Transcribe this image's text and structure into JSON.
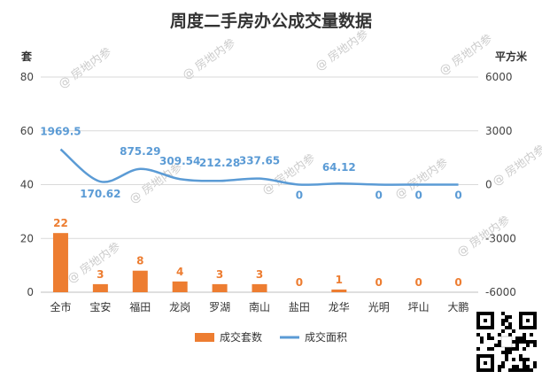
{
  "chart_data": {
    "type": "bar",
    "title": "周度二手房办公成交量数据",
    "categories": [
      "全市",
      "宝安",
      "福田",
      "龙岗",
      "罗湖",
      "南山",
      "盐田",
      "龙华",
      "光明",
      "坪山",
      "大鹏"
    ],
    "series": [
      {
        "name": "成交套数",
        "type": "bar",
        "axis": "left",
        "color": "#ed7d31",
        "values": [
          22,
          3,
          8,
          4,
          3,
          3,
          0,
          1,
          0,
          0,
          0
        ],
        "labels": [
          "22",
          "3",
          "8",
          "4",
          "3",
          "3",
          "0",
          "1",
          "0",
          "0",
          "0"
        ]
      },
      {
        "name": "成交面积",
        "type": "line",
        "axis": "right",
        "color": "#5b9bd5",
        "values": [
          1969.5,
          170.62,
          875.29,
          309.54,
          212.28,
          337.65,
          0,
          64.12,
          0,
          0,
          0
        ],
        "labels": [
          "1969.5",
          "170.62",
          "875.29",
          "309.54",
          "212.28",
          "337.65",
          "0",
          "64.12",
          "0",
          "0",
          "0"
        ]
      }
    ],
    "ylabel_left": "套",
    "ylabel_right": "平方米",
    "ylim_left": [
      0,
      80
    ],
    "ylim_right": [
      -6000,
      6000
    ],
    "yticks_left": [
      "0",
      "20",
      "40",
      "60",
      "80"
    ],
    "yticks_right": [
      "-6000",
      "-3000",
      "0",
      "3000",
      "6000"
    ],
    "grid": true,
    "legend": "bottom-center"
  },
  "watermark": {
    "text": "@ 房地内参",
    "icon": "qr-code"
  }
}
